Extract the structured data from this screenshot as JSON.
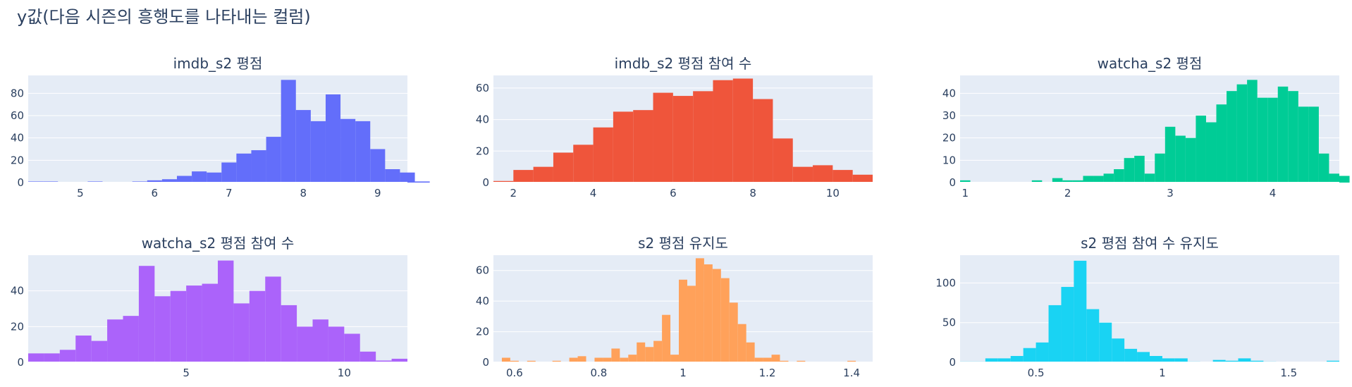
{
  "page_title": "y값(다음 시즌의 흥행도를 나타내는 컬럼)",
  "chart_data": [
    {
      "type": "bar",
      "title": "imdb_s2 평점",
      "color": "#636efa",
      "xlim": [
        4.3,
        9.4
      ],
      "ylim": [
        0,
        96
      ],
      "xticks": [
        5,
        6,
        7,
        8,
        9
      ],
      "yticks": [
        0,
        20,
        40,
        60,
        80
      ],
      "bins": {
        "start": 4.3,
        "width": 0.2,
        "values": [
          1,
          1,
          0,
          0,
          1,
          0,
          0,
          1,
          2,
          3,
          6,
          10,
          9,
          18,
          26,
          29,
          41,
          92,
          65,
          55,
          79,
          57,
          55,
          30,
          12,
          9,
          1
        ]
      }
    },
    {
      "type": "bar",
      "title": "imdb_s2 평점 참여 수",
      "color": "#ef553b",
      "xlim": [
        1.5,
        11
      ],
      "ylim": [
        0,
        68
      ],
      "xticks": [
        2,
        4,
        6,
        8,
        10
      ],
      "yticks": [
        0,
        20,
        40,
        60
      ],
      "bins": {
        "start": 1.5,
        "width": 0.5,
        "values": [
          1,
          8,
          10,
          19,
          24,
          35,
          45,
          46,
          57,
          55,
          58,
          65,
          66,
          53,
          28,
          10,
          11,
          8,
          5
        ]
      }
    },
    {
      "type": "bar",
      "title": "watcha_s2 평점",
      "color": "#00cc96",
      "xlim": [
        0.95,
        4.65
      ],
      "ylim": [
        0,
        48
      ],
      "xticks": [
        1,
        2,
        3,
        4
      ],
      "yticks": [
        0,
        10,
        20,
        30,
        40
      ],
      "bins": {
        "start": 0.95,
        "width": 0.1,
        "values": [
          1,
          0,
          0,
          0,
          0,
          0,
          0,
          1,
          0,
          2,
          1,
          1,
          3,
          3,
          4,
          6,
          11,
          12,
          4,
          13,
          25,
          21,
          20,
          30,
          27,
          35,
          41,
          44,
          46,
          38,
          38,
          43,
          41,
          34,
          34,
          13,
          4,
          3
        ]
      }
    },
    {
      "type": "bar",
      "title": "watcha_s2 평점 참여 수",
      "color": "#ab63fa",
      "xlim": [
        0,
        12
      ],
      "ylim": [
        0,
        60
      ],
      "xticks": [
        5,
        10
      ],
      "yticks": [
        0,
        20,
        40
      ],
      "bins": {
        "start": 0,
        "width": 0.5,
        "values": [
          5,
          5,
          7,
          15,
          12,
          24,
          26,
          54,
          37,
          40,
          43,
          44,
          57,
          33,
          40,
          48,
          32,
          20,
          24,
          20,
          16,
          6,
          1,
          2
        ]
      }
    },
    {
      "type": "bar",
      "title": "s2 평점 유지도",
      "color": "#ffa15a",
      "xlim": [
        0.55,
        1.45
      ],
      "ylim": [
        0,
        70
      ],
      "xticks": [
        0.6,
        0.8,
        1,
        1.2,
        1.4
      ],
      "yticks": [
        0,
        20,
        40,
        60
      ],
      "bins": {
        "start": 0.55,
        "width": 0.02,
        "values": [
          0,
          3,
          1,
          0,
          1,
          0,
          0,
          1,
          0,
          3,
          4,
          0,
          3,
          3,
          9,
          3,
          5,
          13,
          10,
          14,
          31,
          5,
          54,
          50,
          68,
          64,
          61,
          55,
          39,
          25,
          13,
          3,
          3,
          5,
          1,
          0,
          1,
          0,
          0,
          0,
          0,
          0,
          1
        ]
      }
    },
    {
      "type": "bar",
      "title": "s2 평점 참여 수 유지도",
      "color": "#19d3f3",
      "xlim": [
        0.2,
        1.7
      ],
      "ylim": [
        0,
        135
      ],
      "xticks": [
        0.5,
        1,
        1.5
      ],
      "yticks": [
        0,
        50,
        100
      ],
      "bins": {
        "start": 0.2,
        "width": 0.05,
        "values": [
          1,
          1,
          5,
          5,
          8,
          18,
          25,
          72,
          95,
          128,
          67,
          50,
          30,
          17,
          13,
          8,
          5,
          5,
          1,
          0,
          3,
          2,
          5,
          2,
          1,
          0,
          0,
          0,
          0,
          2
        ]
      }
    }
  ]
}
